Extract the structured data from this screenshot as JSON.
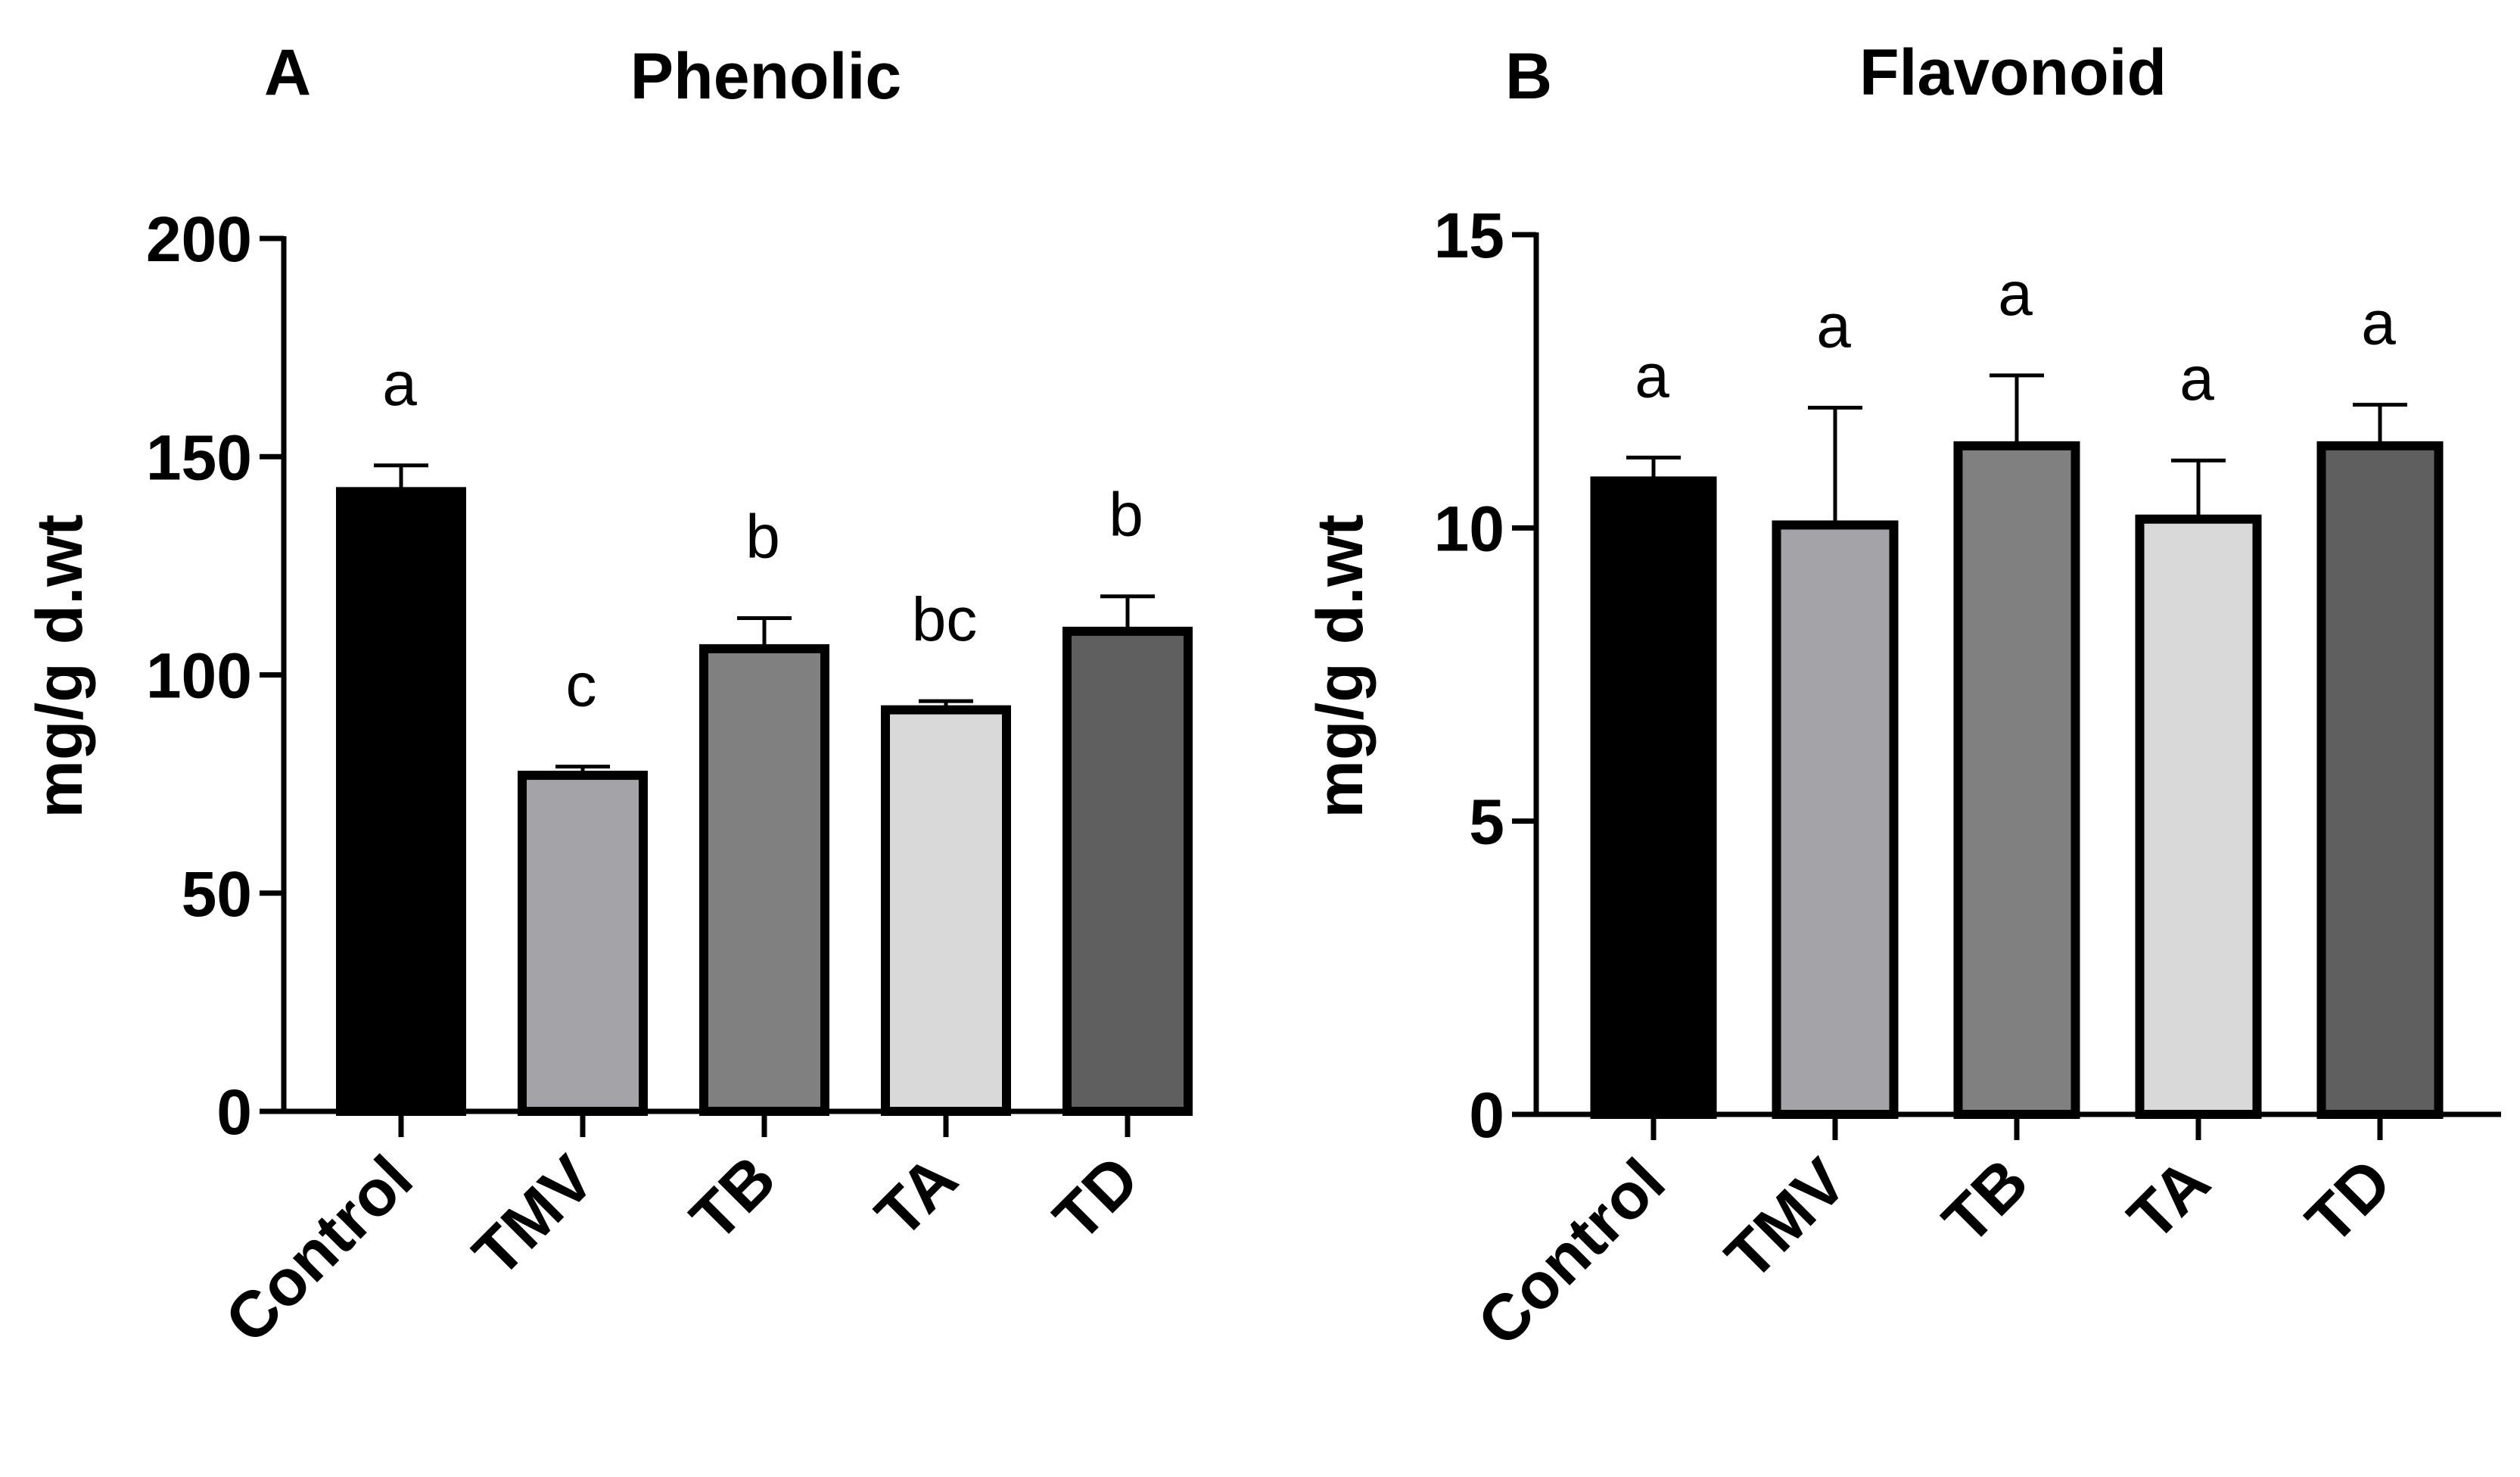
{
  "chart_data": [
    {
      "type": "bar",
      "panel_label": "A",
      "title": "Phenolic",
      "ylabel": "mg/g d.wt",
      "xlabel": "",
      "ylim": [
        0,
        200
      ],
      "yticks": [
        "0",
        "50",
        "100",
        "150",
        "200"
      ],
      "categories": [
        "Control",
        "TMV",
        "TB",
        "TA",
        "TD"
      ],
      "values": [
        142,
        77,
        106,
        92,
        110
      ],
      "errors": [
        6,
        2,
        7,
        2,
        8
      ],
      "significance": [
        "a",
        "c",
        "b",
        "bc",
        "b"
      ],
      "colors": [
        "#000000",
        "#a3a3a8",
        "#808080",
        "#d9d9d9",
        "#5f5f5f"
      ],
      "grid": false,
      "legend": "none"
    },
    {
      "type": "bar",
      "panel_label": "B",
      "title": "Flavonoid",
      "ylabel": "mg/g d.wt",
      "xlabel": "",
      "ylim": [
        0,
        15
      ],
      "yticks": [
        "0",
        "5",
        "10",
        "15"
      ],
      "categories": [
        "Control",
        "TMV",
        "TB",
        "TA",
        "TD"
      ],
      "values": [
        10.8,
        10.05,
        11.4,
        10.15,
        11.4
      ],
      "errors": [
        0.4,
        2.0,
        1.2,
        1.0,
        0.7
      ],
      "significance": [
        "a",
        "a",
        "a",
        "a",
        "a"
      ],
      "colors": [
        "#000000",
        "#a3a3a8",
        "#808080",
        "#d9d9d9",
        "#5f5f5f"
      ],
      "grid": false,
      "legend": "none"
    }
  ]
}
